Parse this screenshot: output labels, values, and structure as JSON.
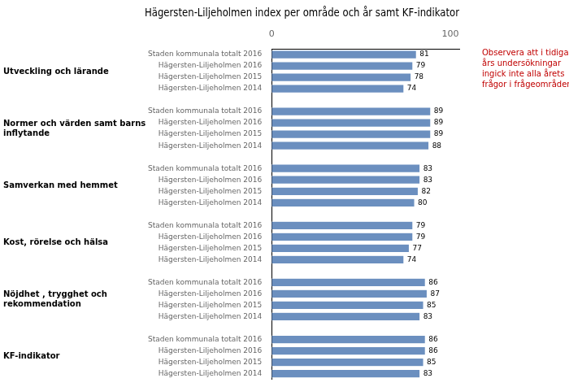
{
  "chart_data": {
    "type": "bar",
    "orientation": "horizontal",
    "title": "Hägersten-Liljeholmen index per område och år samt KF-indikator",
    "annotation": "Observera att i tidigare\nårs undersökningar\ningick inte alla årets\nfrågor i frågeområdena.",
    "color": "#6B8FBF",
    "xlim": [
      0,
      105
    ],
    "xticks": [
      0,
      100
    ],
    "grid": false,
    "data_labels": true,
    "groups": [
      {
        "label": "Utveckling och lärande",
        "categories": [
          "Staden kommunala totalt 2016",
          "Hägersten-Liljeholmen 2016",
          "Hägersten-Liljeholmen 2015",
          "Hägersten-Liljeholmen 2014"
        ],
        "values": [
          81,
          79,
          78,
          74
        ]
      },
      {
        "label": "Normer och värden samt barns\ninflytande",
        "categories": [
          "Staden kommunala totalt 2016",
          "Hägersten-Liljeholmen 2016",
          "Hägersten-Liljeholmen 2015",
          "Hägersten-Liljeholmen 2014"
        ],
        "values": [
          89,
          89,
          89,
          88
        ]
      },
      {
        "label": "Samverkan med hemmet",
        "categories": [
          "Staden kommunala totalt 2016",
          "Hägersten-Liljeholmen 2016",
          "Hägersten-Liljeholmen 2015",
          "Hägersten-Liljeholmen 2014"
        ],
        "values": [
          83,
          83,
          82,
          80
        ]
      },
      {
        "label": "Kost, rörelse och hälsa",
        "categories": [
          "Staden kommunala totalt 2016",
          "Hägersten-Liljeholmen 2016",
          "Hägersten-Liljeholmen 2015",
          "Hägersten-Liljeholmen 2014"
        ],
        "values": [
          79,
          79,
          77,
          74
        ]
      },
      {
        "label": "Nöjdhet , trygghet och\nrekommendation",
        "categories": [
          "Staden kommunala totalt 2016",
          "Hägersten-Liljeholmen 2016",
          "Hägersten-Liljeholmen 2015",
          "Hägersten-Liljeholmen 2014"
        ],
        "values": [
          86,
          87,
          85,
          83
        ]
      },
      {
        "label": "KF-indikator",
        "categories": [
          "Staden kommunala totalt 2016",
          "Hägersten-Liljeholmen 2016",
          "Hägersten-Liljeholmen 2015",
          "Hägersten-Liljeholmen 2014"
        ],
        "values": [
          86,
          86,
          85,
          83
        ]
      }
    ]
  }
}
